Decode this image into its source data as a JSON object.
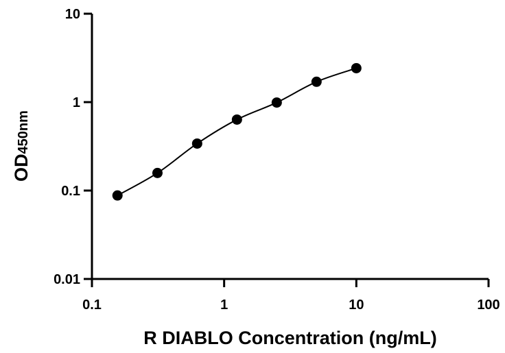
{
  "chart_data": {
    "type": "scatter",
    "xlabel": "R DIABLO Concentration (ng/mL)",
    "ylabel": "OD",
    "ylabel_subscript": "450nm",
    "x_scale": "log",
    "y_scale": "log",
    "xlim": [
      0.1,
      100
    ],
    "ylim": [
      0.01,
      10
    ],
    "x_ticks": [
      "0.1",
      "1",
      "10",
      "100"
    ],
    "y_ticks": [
      "0.01",
      "0.1",
      "1",
      "10"
    ],
    "grid": false,
    "series": [
      {
        "x": [
          0.156,
          0.313,
          0.625,
          1.25,
          2.5,
          5,
          10
        ],
        "y": [
          0.088,
          0.158,
          0.34,
          0.635,
          0.99,
          1.7,
          2.42
        ],
        "marker": "circle",
        "fit_line": true,
        "color": "#000000"
      }
    ]
  }
}
